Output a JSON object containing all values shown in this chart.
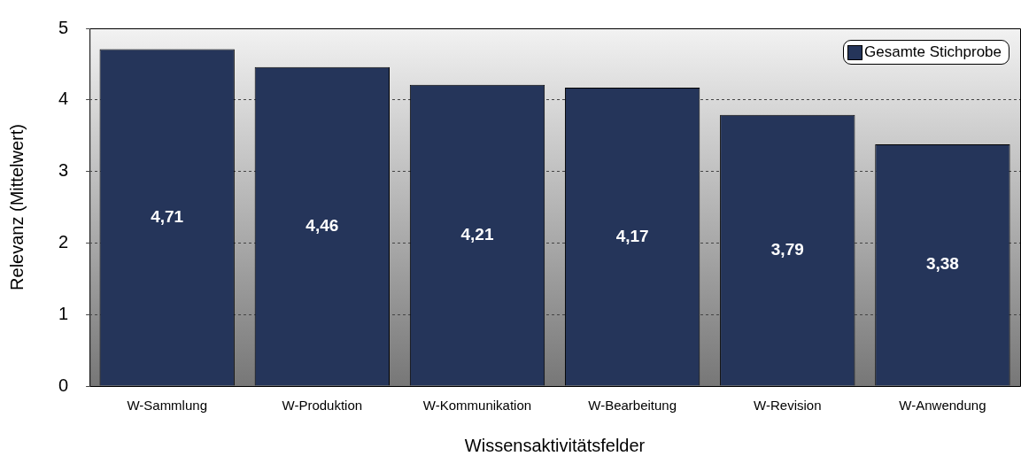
{
  "chart_data": {
    "type": "bar",
    "xlabel": "Wissensaktivitätsfelder",
    "ylabel": "Relevanz (Mittelwert)",
    "categories": [
      "W-Sammlung",
      "W-Produktion",
      "W-Kommunikation",
      "W-Bearbeitung",
      "W-Revision",
      "W-Anwendung"
    ],
    "series": [
      {
        "name": "Gesamte Stichprobe",
        "color": "#25355a",
        "values": [
          4.71,
          4.46,
          4.21,
          4.17,
          3.79,
          3.38
        ]
      }
    ],
    "value_labels": [
      "4,71",
      "4,46",
      "4,21",
      "4,17",
      "3,79",
      "3,38"
    ],
    "ylim": [
      0,
      5
    ],
    "yticks": [
      0,
      1,
      2,
      3,
      4,
      5
    ],
    "grid": "y",
    "legend": "top right"
  }
}
